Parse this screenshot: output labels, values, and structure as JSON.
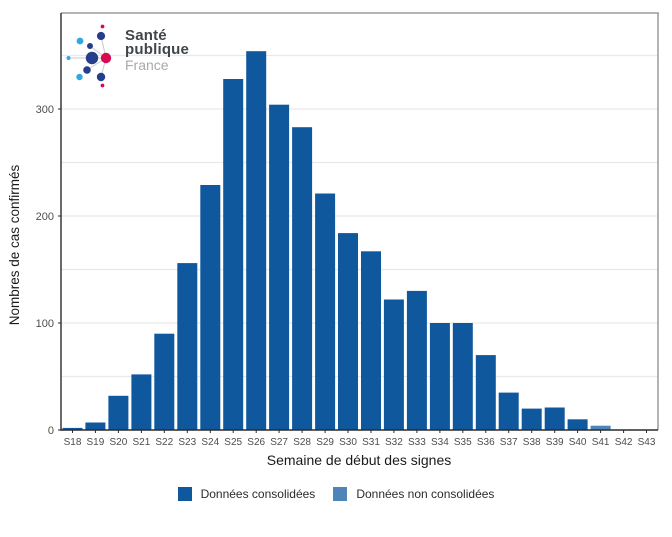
{
  "logo": {
    "line1": "Santé",
    "line2": "publique",
    "line3": "France"
  },
  "colors": {
    "bar_consolidated": "#10589E",
    "bar_non_consolidated": "#4E84B7",
    "grid": "#E9E9E9",
    "axis_line": "#2b2b2b",
    "panel_border": "#9B9B9B",
    "tick_text": "#4D4D4D",
    "axis_title_text": "#1a1a1a",
    "logo_navy": "#243E8B",
    "logo_cyan": "#2FA8DF",
    "logo_magenta": "#D60B52",
    "logo_text": "#41464A",
    "logo_text_light": "#A6AAAC"
  },
  "chart_data": {
    "type": "bar",
    "title": "",
    "xlabel": "Semaine de début des signes",
    "ylabel": "Nombres de cas confirmés",
    "categories": [
      "S18",
      "S19",
      "S20",
      "S21",
      "S22",
      "S23",
      "S24",
      "S25",
      "S26",
      "S27",
      "S28",
      "S29",
      "S30",
      "S31",
      "S32",
      "S33",
      "S34",
      "S35",
      "S36",
      "S37",
      "S38",
      "S39",
      "S40",
      "S41",
      "S42",
      "S43"
    ],
    "series": [
      {
        "name": "Données consolidées",
        "color": "#10589E",
        "values": [
          2,
          7,
          32,
          52,
          90,
          156,
          229,
          328,
          354,
          304,
          283,
          221,
          184,
          167,
          122,
          130,
          100,
          100,
          70,
          35,
          20,
          21,
          10,
          0,
          0,
          0
        ]
      },
      {
        "name": "Données non consolidées",
        "color": "#4E84B7",
        "values": [
          0,
          0,
          0,
          0,
          0,
          0,
          0,
          0,
          0,
          0,
          0,
          0,
          0,
          0,
          0,
          0,
          0,
          0,
          0,
          0,
          0,
          0,
          0,
          4,
          0,
          0
        ]
      }
    ],
    "y_ticks": [
      0,
      100,
      200,
      300
    ],
    "grid_step": 50,
    "ylim": [
      0,
      390
    ],
    "grid": "horizontal",
    "legend_position": "bottom"
  }
}
